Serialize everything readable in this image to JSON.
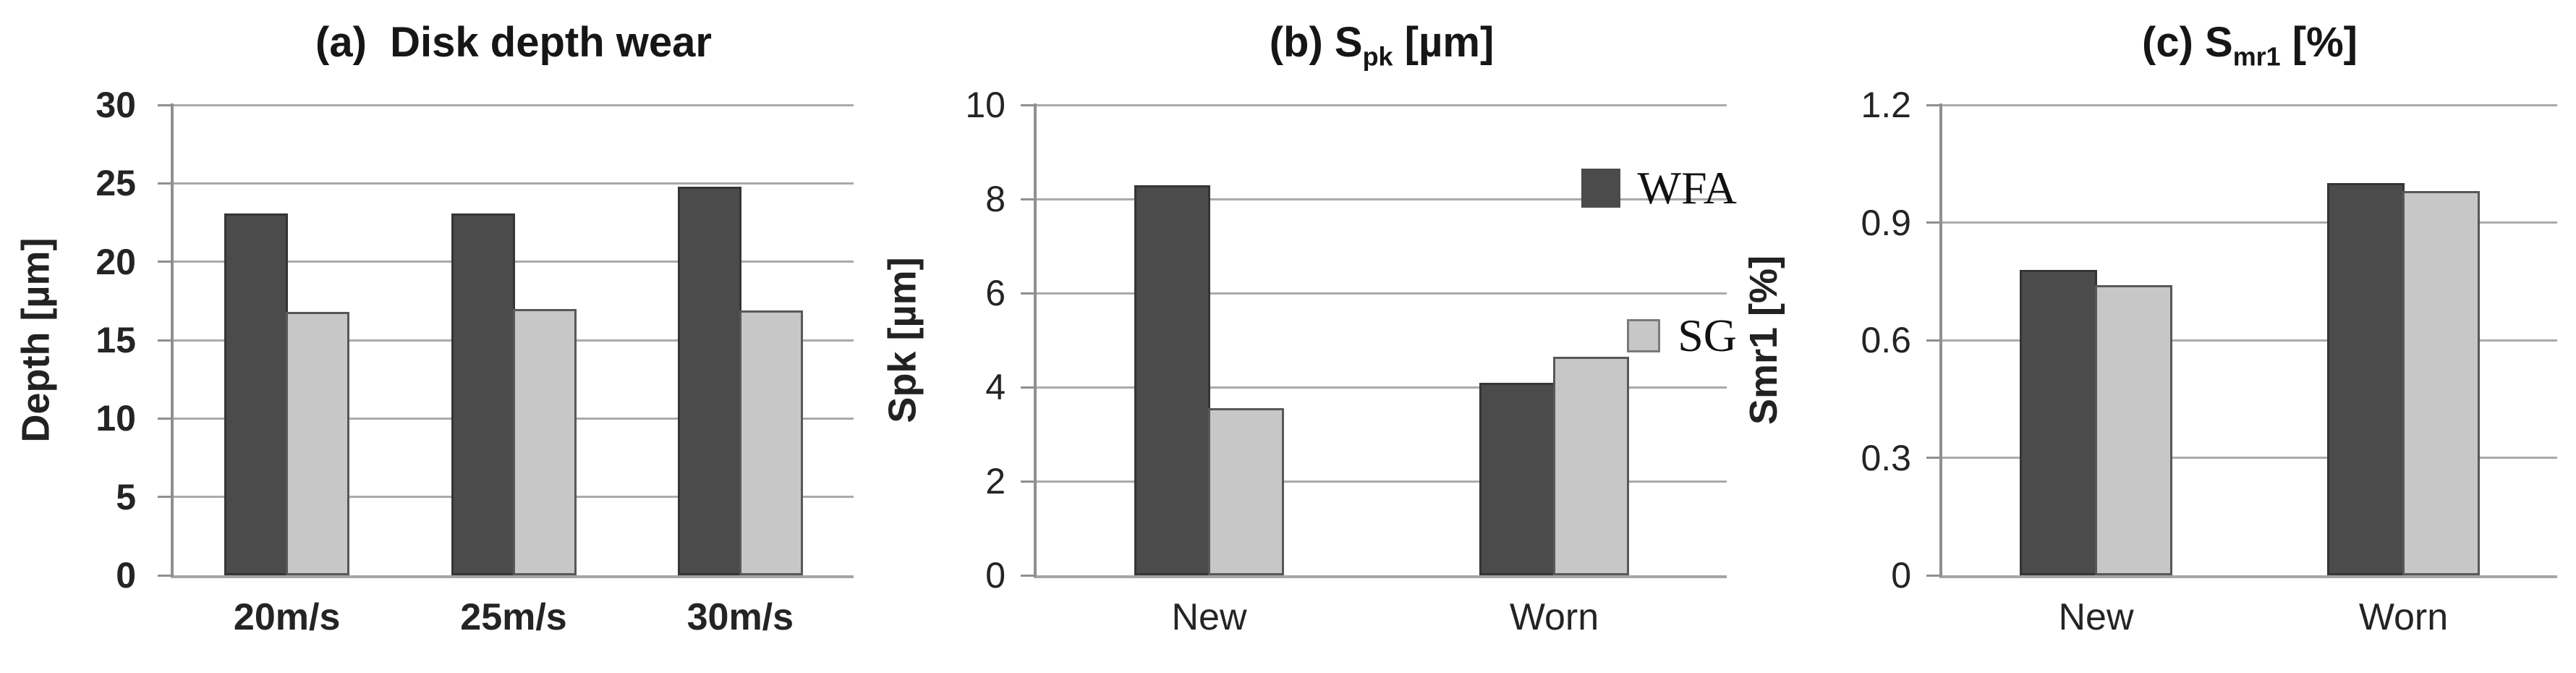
{
  "figure": {
    "background": "#ffffff",
    "colors": {
      "wfa": "#4b4b4b",
      "wfa_border": "#353535",
      "sg": "#c7c7c7",
      "sg_border": "#585858",
      "gridline": "#aaaaaa",
      "axis": "#8f8f8f",
      "text": "#1c1c1c"
    }
  },
  "chart_data": [
    {
      "id": "a",
      "type": "bar",
      "title": "(a)  Disk depth wear",
      "title_segments": [
        {
          "t": "(a)  Disk depth wear"
        }
      ],
      "ylabel": "Depth [µm]",
      "xlabel": "",
      "ylim": [
        0,
        30
      ],
      "yticks": [
        "0",
        "5",
        "10",
        "15",
        "20",
        "25",
        "30"
      ],
      "grid": true,
      "legend": null,
      "categories": [
        "20m/s",
        "25m/s",
        "30m/s"
      ],
      "series": [
        {
          "name": "WFA",
          "color_key": "wfa",
          "values": [
            23.1,
            23.1,
            24.8
          ]
        },
        {
          "name": "SG",
          "color_key": "sg",
          "values": [
            16.8,
            17.0,
            16.9
          ]
        }
      ]
    },
    {
      "id": "b",
      "type": "bar",
      "title": "(b) Spk [µm]",
      "title_segments": [
        {
          "t": "(b) S"
        },
        {
          "t": "pk",
          "sub": true
        },
        {
          "t": " [µm]"
        }
      ],
      "ylabel": "Spk [µm]",
      "xlabel": "",
      "ylim": [
        0,
        10
      ],
      "yticks": [
        "0",
        "2",
        "4",
        "6",
        "8",
        "10"
      ],
      "grid": true,
      "legend": {
        "position": "top-right",
        "items": [
          {
            "label": "WFA",
            "color_key": "wfa"
          },
          {
            "label": "SG",
            "color_key": "sg"
          }
        ]
      },
      "categories": [
        "New",
        "Worn"
      ],
      "series": [
        {
          "name": "WFA",
          "color_key": "wfa",
          "values": [
            8.3,
            4.1
          ]
        },
        {
          "name": "SG",
          "color_key": "sg",
          "values": [
            3.55,
            4.65
          ]
        }
      ]
    },
    {
      "id": "c",
      "type": "bar",
      "title": "(c) Smr1 [%]",
      "title_segments": [
        {
          "t": "(c) S"
        },
        {
          "t": "mr1",
          "sub": true
        },
        {
          "t": " [%]"
        }
      ],
      "ylabel": "Smr1 [%]",
      "xlabel": "",
      "ylim": [
        0,
        1.2
      ],
      "yticks": [
        "0",
        "0.3",
        "0.6",
        "0.9",
        "1.2"
      ],
      "grid": true,
      "legend": null,
      "categories": [
        "New",
        "Worn"
      ],
      "series": [
        {
          "name": "WFA",
          "color_key": "wfa",
          "values": [
            0.78,
            1.0
          ]
        },
        {
          "name": "SG",
          "color_key": "sg",
          "values": [
            0.74,
            0.98
          ]
        }
      ]
    }
  ]
}
